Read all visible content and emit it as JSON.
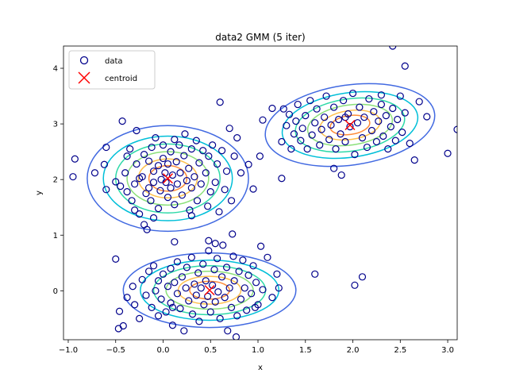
{
  "chart_data": {
    "type": "scatter",
    "title": "data2 GMM (5 iter)",
    "xlabel": "x",
    "ylabel": "y",
    "xlim": [
      -1.05,
      3.1
    ],
    "ylim": [
      -0.88,
      4.4
    ],
    "x_ticks": [
      -1.0,
      -0.5,
      0.0,
      0.5,
      1.0,
      1.5,
      2.0,
      2.5,
      3.0
    ],
    "x_tick_labels": [
      "−1.0",
      "−0.5",
      "0.0",
      "0.5",
      "1.0",
      "1.5",
      "2.0",
      "2.5",
      "3.0"
    ],
    "y_ticks": [
      0,
      1,
      2,
      3,
      4
    ],
    "y_tick_labels": [
      "0",
      "1",
      "2",
      "3",
      "4"
    ],
    "legend": {
      "position": "upper-left",
      "entries": [
        {
          "label": "data",
          "marker": "open-circle",
          "color": "#00008b"
        },
        {
          "label": "centroid",
          "marker": "x",
          "color": "#ff0000"
        }
      ]
    },
    "colors": {
      "data": "#00008b",
      "centroid": "#ff0000",
      "contour_levels": [
        "#4169e1",
        "#00bfd8",
        "#2ed9a8",
        "#8be07a",
        "#ffc04d",
        "#ff8c3a"
      ]
    },
    "centroids": [
      {
        "x": 0.05,
        "y": 2.02
      },
      {
        "x": 0.49,
        "y": 0.01
      },
      {
        "x": 1.97,
        "y": 2.98
      }
    ],
    "contours": [
      {
        "cx": 0.05,
        "cy": 2.02,
        "rx": [
          0.85,
          0.68,
          0.55,
          0.43,
          0.31,
          0.2
        ],
        "ry": [
          0.95,
          0.76,
          0.62,
          0.48,
          0.35,
          0.23
        ],
        "angle_deg": 0
      },
      {
        "cx": 0.49,
        "cy": 0.01,
        "rx": [
          0.91,
          0.73,
          0.59,
          0.46,
          0.33,
          0.21
        ],
        "ry": [
          0.67,
          0.54,
          0.44,
          0.34,
          0.25,
          0.16
        ],
        "angle_deg": 0
      },
      {
        "cx": 1.97,
        "cy": 2.98,
        "rx": [
          0.9,
          0.72,
          0.58,
          0.45,
          0.32,
          0.21
        ],
        "ry": [
          0.72,
          0.58,
          0.47,
          0.36,
          0.26,
          0.17
        ],
        "angle_deg": 8
      }
    ],
    "points": [
      [
        -0.93,
        2.37
      ],
      [
        -0.95,
        2.05
      ],
      [
        -0.72,
        2.12
      ],
      [
        -0.62,
        2.27
      ],
      [
        -0.6,
        1.82
      ],
      [
        -0.6,
        2.58
      ],
      [
        -0.5,
        1.96
      ],
      [
        -0.43,
        3.05
      ],
      [
        -0.45,
        1.88
      ],
      [
        -0.4,
        2.12
      ],
      [
        -0.38,
        2.42
      ],
      [
        -0.35,
        2.55
      ],
      [
        -0.33,
        1.62
      ],
      [
        -0.3,
        1.92
      ],
      [
        -0.28,
        2.28
      ],
      [
        -0.3,
        1.45
      ],
      [
        -0.28,
        2.88
      ],
      [
        -0.25,
        1.38
      ],
      [
        -0.22,
        2.05
      ],
      [
        -0.2,
        2.45
      ],
      [
        -0.18,
        1.75
      ],
      [
        -0.2,
        1.19
      ],
      [
        -0.17,
        1.1
      ],
      [
        -0.15,
        1.85
      ],
      [
        -0.15,
        2.33
      ],
      [
        -0.13,
        1.62
      ],
      [
        -0.12,
        2.58
      ],
      [
        -0.1,
        1.95
      ],
      [
        -0.1,
        2.15
      ],
      [
        -0.1,
        1.31
      ],
      [
        -0.08,
        2.75
      ],
      [
        -0.05,
        1.48
      ],
      [
        -0.05,
        2.25
      ],
      [
        -0.03,
        1.8
      ],
      [
        -0.02,
        2.0
      ],
      [
        0.0,
        2.62
      ],
      [
        0.0,
        2.38
      ],
      [
        0.02,
        2.12
      ],
      [
        0.03,
        1.95
      ],
      [
        0.05,
        2.28
      ],
      [
        0.05,
        1.68
      ],
      [
        0.08,
        2.5
      ],
      [
        0.08,
        1.85
      ],
      [
        0.1,
        2.08
      ],
      [
        0.12,
        2.72
      ],
      [
        0.12,
        1.55
      ],
      [
        0.14,
        2.32
      ],
      [
        0.15,
        1.92
      ],
      [
        0.17,
        2.62
      ],
      [
        0.18,
        2.12
      ],
      [
        0.2,
        1.72
      ],
      [
        0.22,
        2.43
      ],
      [
        0.23,
        2.82
      ],
      [
        0.25,
        1.98
      ],
      [
        0.27,
        2.2
      ],
      [
        0.28,
        1.45
      ],
      [
        0.3,
        2.55
      ],
      [
        0.3,
        1.85
      ],
      [
        0.33,
        2.05
      ],
      [
        0.35,
        2.7
      ],
      [
        0.36,
        1.62
      ],
      [
        0.38,
        2.3
      ],
      [
        0.4,
        1.92
      ],
      [
        0.42,
        2.52
      ],
      [
        0.45,
        2.12
      ],
      [
        0.47,
        1.52
      ],
      [
        0.48,
        2.42
      ],
      [
        0.5,
        1.78
      ],
      [
        0.52,
        2.62
      ],
      [
        0.55,
        1.95
      ],
      [
        0.57,
        2.28
      ],
      [
        0.59,
        1.42
      ],
      [
        0.62,
        2.52
      ],
      [
        0.65,
        1.82
      ],
      [
        0.67,
        2.15
      ],
      [
        0.7,
        2.92
      ],
      [
        0.72,
        1.62
      ],
      [
        0.75,
        2.42
      ],
      [
        0.78,
        2.75
      ],
      [
        0.82,
        2.12
      ],
      [
        0.6,
        3.39
      ],
      [
        0.73,
        1.02
      ],
      [
        0.12,
        0.88
      ],
      [
        0.95,
        1.83
      ],
      [
        0.9,
        2.27
      ],
      [
        -0.38,
        1.78
      ],
      [
        -0.25,
        2.02
      ],
      [
        0.3,
        1.35
      ],
      [
        -0.5,
        0.57
      ],
      [
        -0.46,
        -0.37
      ],
      [
        -0.47,
        -0.68
      ],
      [
        -0.42,
        -0.63
      ],
      [
        -0.38,
        -0.12
      ],
      [
        -0.32,
        0.08
      ],
      [
        -0.3,
        -0.25
      ],
      [
        -0.25,
        -0.5
      ],
      [
        -0.22,
        0.2
      ],
      [
        -0.18,
        -0.08
      ],
      [
        -0.15,
        0.35
      ],
      [
        -0.12,
        -0.3
      ],
      [
        -0.1,
        0.45
      ],
      [
        -0.08,
        0.0
      ],
      [
        -0.05,
        -0.45
      ],
      [
        -0.05,
        0.18
      ],
      [
        -0.02,
        -0.15
      ],
      [
        0.0,
        0.3
      ],
      [
        0.03,
        -0.38
      ],
      [
        0.05,
        0.08
      ],
      [
        0.08,
        0.4
      ],
      [
        0.08,
        -0.22
      ],
      [
        0.1,
        -0.62
      ],
      [
        0.12,
        0.15
      ],
      [
        0.15,
        -0.05
      ],
      [
        0.15,
        0.52
      ],
      [
        0.18,
        -0.32
      ],
      [
        0.2,
        0.25
      ],
      [
        0.22,
        -0.72
      ],
      [
        0.24,
        0.05
      ],
      [
        0.25,
        0.42
      ],
      [
        0.27,
        -0.18
      ],
      [
        0.3,
        0.6
      ],
      [
        0.31,
        -0.42
      ],
      [
        0.33,
        0.12
      ],
      [
        0.35,
        -0.08
      ],
      [
        0.37,
        0.32
      ],
      [
        0.38,
        -0.55
      ],
      [
        0.4,
        0.05
      ],
      [
        0.42,
        0.48
      ],
      [
        0.43,
        -0.25
      ],
      [
        0.45,
        0.18
      ],
      [
        0.47,
        -0.1
      ],
      [
        0.48,
        0.72
      ],
      [
        0.5,
        -0.38
      ],
      [
        0.52,
        0.1
      ],
      [
        0.54,
        0.38
      ],
      [
        0.55,
        -0.2
      ],
      [
        0.57,
        0.58
      ],
      [
        0.58,
        -0.02
      ],
      [
        0.6,
        -0.5
      ],
      [
        0.62,
        0.25
      ],
      [
        0.63,
        0.82
      ],
      [
        0.65,
        -0.12
      ],
      [
        0.67,
        0.42
      ],
      [
        0.68,
        -0.72
      ],
      [
        0.7,
        0.05
      ],
      [
        0.72,
        -0.3
      ],
      [
        0.74,
        0.62
      ],
      [
        0.75,
        0.18
      ],
      [
        0.78,
        -0.45
      ],
      [
        0.8,
        0.35
      ],
      [
        0.82,
        -0.15
      ],
      [
        0.84,
        0.55
      ],
      [
        0.86,
        0.05
      ],
      [
        0.88,
        -0.35
      ],
      [
        0.9,
        0.28
      ],
      [
        0.93,
        -0.05
      ],
      [
        0.95,
        0.45
      ],
      [
        0.98,
        0.15
      ],
      [
        1.0,
        -0.25
      ],
      [
        1.05,
        0.02
      ],
      [
        1.1,
        0.6
      ],
      [
        1.15,
        -0.12
      ],
      [
        1.2,
        0.3
      ],
      [
        1.22,
        0.05
      ],
      [
        1.03,
        0.8
      ],
      [
        0.48,
        0.9
      ],
      [
        0.55,
        0.85
      ],
      [
        0.77,
        -0.83
      ],
      [
        0.1,
        -0.3
      ],
      [
        1.6,
        0.3
      ],
      [
        0.97,
        -0.3
      ],
      [
        1.05,
        3.07
      ],
      [
        1.25,
        2.68
      ],
      [
        1.27,
        3.27
      ],
      [
        1.3,
        2.97
      ],
      [
        1.33,
        3.17
      ],
      [
        1.35,
        2.55
      ],
      [
        1.38,
        2.82
      ],
      [
        1.4,
        3.05
      ],
      [
        1.42,
        3.35
      ],
      [
        1.45,
        2.7
      ],
      [
        1.47,
        2.92
      ],
      [
        1.5,
        3.15
      ],
      [
        1.52,
        2.55
      ],
      [
        1.55,
        3.42
      ],
      [
        1.57,
        2.8
      ],
      [
        1.6,
        3.02
      ],
      [
        1.62,
        3.27
      ],
      [
        1.65,
        2.62
      ],
      [
        1.67,
        2.9
      ],
      [
        1.7,
        3.12
      ],
      [
        1.72,
        3.5
      ],
      [
        1.75,
        2.72
      ],
      [
        1.77,
        2.98
      ],
      [
        1.8,
        3.3
      ],
      [
        1.82,
        2.55
      ],
      [
        1.85,
        3.08
      ],
      [
        1.87,
        2.82
      ],
      [
        1.9,
        3.42
      ],
      [
        1.92,
        2.68
      ],
      [
        1.95,
        3.18
      ],
      [
        1.97,
        2.95
      ],
      [
        2.0,
        3.55
      ],
      [
        2.02,
        2.45
      ],
      [
        2.05,
        3.02
      ],
      [
        2.07,
        3.3
      ],
      [
        2.1,
        2.75
      ],
      [
        2.12,
        3.12
      ],
      [
        2.15,
        2.58
      ],
      [
        2.17,
        3.45
      ],
      [
        2.2,
        2.88
      ],
      [
        2.22,
        3.22
      ],
      [
        2.25,
        2.68
      ],
      [
        2.27,
        3.05
      ],
      [
        2.3,
        3.35
      ],
      [
        2.32,
        2.78
      ],
      [
        2.35,
        3.15
      ],
      [
        2.37,
        2.55
      ],
      [
        2.4,
        2.95
      ],
      [
        2.42,
        3.28
      ],
      [
        2.45,
        2.7
      ],
      [
        2.47,
        3.08
      ],
      [
        2.5,
        3.5
      ],
      [
        2.52,
        2.85
      ],
      [
        2.55,
        3.2
      ],
      [
        2.6,
        2.65
      ],
      [
        2.65,
        2.35
      ],
      [
        2.7,
        3.4
      ],
      [
        2.78,
        3.13
      ],
      [
        2.42,
        4.4
      ],
      [
        2.55,
        4.04
      ],
      [
        3.0,
        2.47
      ],
      [
        3.1,
        2.9
      ],
      [
        1.25,
        2.02
      ],
      [
        1.8,
        2.2
      ],
      [
        1.88,
        2.08
      ],
      [
        2.1,
        0.25
      ],
      [
        2.02,
        0.1
      ],
      [
        1.92,
        3.12
      ],
      [
        2.3,
        3.52
      ],
      [
        1.02,
        2.42
      ],
      [
        1.15,
        3.28
      ]
    ]
  }
}
